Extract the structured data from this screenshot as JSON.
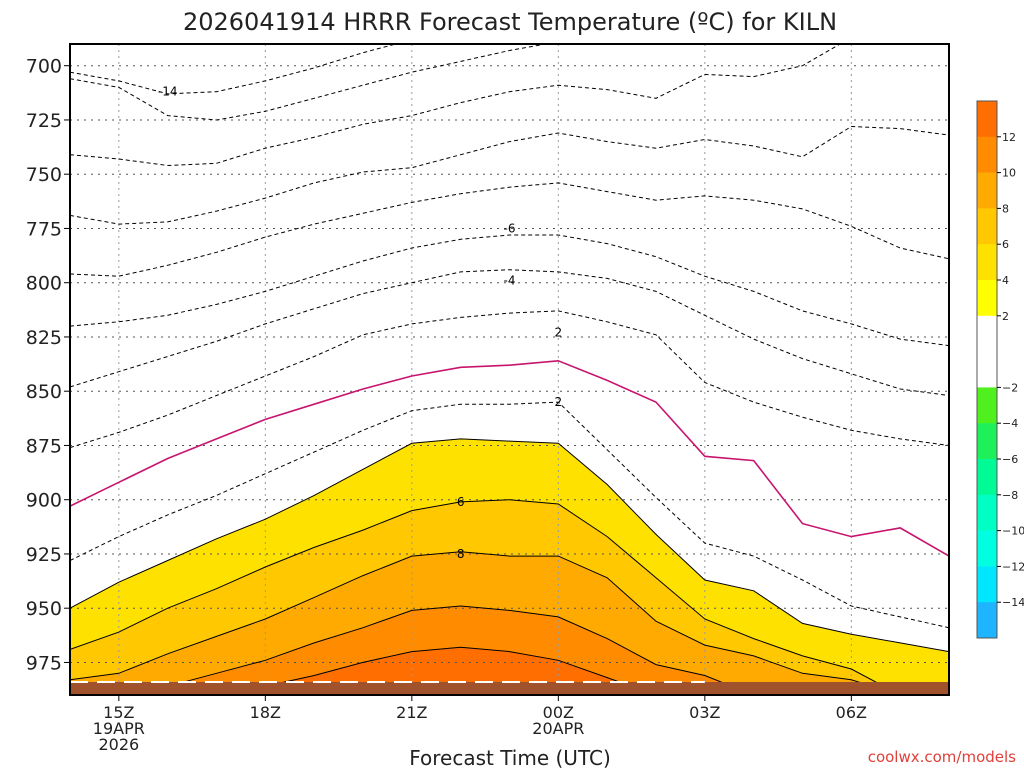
{
  "chart_data": {
    "type": "contour",
    "title": "2026041914 HRRR Forecast Temperature (ºC) for KILN",
    "xlabel": "Forecast Time (UTC)",
    "ylabel": "",
    "watermark": "coolwx.com/models",
    "x_hours": [
      14,
      15,
      16,
      17,
      18,
      19,
      20,
      21,
      22,
      23,
      24,
      25,
      26,
      27,
      28,
      29,
      30,
      31,
      32
    ],
    "xlim": [
      14,
      32
    ],
    "ylim": [
      690,
      990
    ],
    "y_ticks": [
      700,
      725,
      750,
      775,
      800,
      825,
      850,
      875,
      900,
      925,
      950,
      975
    ],
    "x_ticks": [
      {
        "hour": 15,
        "lines": [
          "15Z",
          "19APR",
          "2026"
        ]
      },
      {
        "hour": 18,
        "lines": [
          "18Z"
        ]
      },
      {
        "hour": 21,
        "lines": [
          "21Z"
        ]
      },
      {
        "hour": 24,
        "lines": [
          "00Z",
          "20APR"
        ]
      },
      {
        "hour": 27,
        "lines": [
          "03Z"
        ]
      },
      {
        "hour": 30,
        "lines": [
          "06Z"
        ]
      }
    ],
    "bands": [
      {
        "lower": -999,
        "upper": -14,
        "color": "#1eb4ff"
      },
      {
        "lower": -14,
        "upper": -12,
        "color": "#00e6ff"
      },
      {
        "lower": -12,
        "upper": -10,
        "color": "#00ffe1"
      },
      {
        "lower": -10,
        "upper": -8,
        "color": "#00ffc3"
      },
      {
        "lower": -8,
        "upper": -6,
        "color": "#00fa96"
      },
      {
        "lower": -6,
        "upper": -4,
        "color": "#1ef05a"
      },
      {
        "lower": -4,
        "upper": -2,
        "color": "#50f01e"
      },
      {
        "lower": -2,
        "upper": 2,
        "color": "#ffffff"
      },
      {
        "lower": 2,
        "upper": 4,
        "color": "#ffff00"
      },
      {
        "lower": 4,
        "upper": 6,
        "color": "#ffe100"
      },
      {
        "lower": 6,
        "upper": 8,
        "color": "#ffc800"
      },
      {
        "lower": 8,
        "upper": 10,
        "color": "#ffaa00"
      },
      {
        "lower": 10,
        "upper": 12,
        "color": "#ff8c00"
      },
      {
        "lower": 12,
        "upper": 999,
        "color": "#ff6e00"
      }
    ],
    "isotherms": [
      {
        "temp": -14,
        "label": "-14",
        "label_at": [
          16,
          712
        ],
        "upper_limit": 690,
        "pressure": [
          703,
          707,
          713,
          712,
          707,
          701,
          694,
          688,
          686,
          686,
          686,
          686,
          686,
          686,
          686,
          686,
          686,
          686,
          686
        ]
      },
      {
        "temp": -12,
        "label": "",
        "upper_limit": 690,
        "pressure": [
          706,
          710,
          723,
          725,
          721,
          715,
          709,
          703,
          698,
          693,
          689,
          688,
          687,
          686,
          686,
          686,
          686,
          686,
          686
        ]
      },
      {
        "temp": -10,
        "label": "",
        "upper_limit": 690,
        "pressure": [
          741,
          743,
          746,
          745,
          738,
          733,
          727,
          723,
          717,
          712,
          709,
          711,
          715,
          704,
          705,
          700,
          687,
          690,
          690
        ]
      },
      {
        "temp": -8,
        "label": "",
        "upper_limit": 690,
        "pressure": [
          769,
          773,
          772,
          767,
          761,
          754,
          749,
          747,
          741,
          735,
          731,
          735,
          738,
          734,
          737,
          742,
          728,
          729,
          732
        ]
      },
      {
        "temp": -6,
        "label": "-6",
        "label_at": [
          23,
          775
        ],
        "upper_limit": 690,
        "pressure": [
          796,
          797,
          792,
          786,
          779,
          773,
          768,
          763,
          759,
          756,
          754,
          758,
          762,
          760,
          762,
          766,
          774,
          784,
          789
        ]
      },
      {
        "temp": -4,
        "label": "-4",
        "label_at": [
          23,
          799
        ],
        "upper_limit": 690,
        "pressure": [
          820,
          818,
          815,
          810,
          804,
          797,
          790,
          784,
          780,
          778,
          778,
          782,
          788,
          797,
          804,
          813,
          819,
          826,
          829
        ]
      },
      {
        "temp": -2,
        "label": "",
        "upper_limit": 690,
        "pressure": [
          848,
          841,
          834,
          827,
          819,
          812,
          805,
          800,
          795,
          794,
          795,
          798,
          804,
          815,
          826,
          835,
          842,
          849,
          852
        ]
      },
      {
        "temp": 2,
        "label": "2",
        "label_at": [
          24,
          823
        ],
        "upper_limit": 690,
        "pressure": [
          876,
          869,
          861,
          852,
          843,
          834,
          824,
          819,
          816,
          814,
          813,
          818,
          824,
          846,
          855,
          862,
          868,
          872,
          875
        ]
      },
      {
        "temp": 0,
        "label": "",
        "line_color": "#c8146e",
        "line_dash": "solid",
        "upper_limit": 690,
        "pressure": [
          903,
          892,
          881,
          872,
          863,
          856,
          849,
          843,
          839,
          838,
          836,
          845,
          855,
          880,
          882,
          911,
          917,
          913,
          926
        ]
      },
      {
        "temp": 2,
        "label": "2",
        "label_at": [
          24,
          855
        ],
        "upper_limit": 690,
        "pressure": [
          928,
          917,
          907,
          898,
          888,
          878,
          868,
          859,
          856,
          856,
          855,
          877,
          899,
          920,
          926,
          937,
          949,
          954,
          959
        ]
      },
      {
        "temp": 4,
        "label": "",
        "upper_limit": 990,
        "pressure": [
          950,
          938,
          928,
          918,
          909,
          898,
          886,
          874,
          872,
          873,
          874,
          893,
          916,
          937,
          942,
          957,
          962,
          966,
          970
        ]
      },
      {
        "temp": 6,
        "label": "6",
        "label_at": [
          22,
          901
        ],
        "upper_limit": 990,
        "pressure": [
          969,
          961,
          950,
          941,
          931,
          922,
          914,
          905,
          901,
          900,
          902,
          917,
          936,
          955,
          964,
          972,
          978,
          990,
          990
        ]
      },
      {
        "temp": 8,
        "label": "8",
        "label_at": [
          22,
          925
        ],
        "upper_limit": 990,
        "pressure": [
          983,
          980,
          971,
          963,
          955,
          945,
          935,
          926,
          924,
          926,
          926,
          936,
          956,
          967,
          972,
          980,
          983,
          990,
          990
        ]
      },
      {
        "temp": 10,
        "label": "",
        "upper_limit": 990,
        "pressure": [
          990,
          990,
          986,
          980,
          974,
          966,
          959,
          951,
          949,
          951,
          954,
          964,
          976,
          981,
          990,
          990,
          990,
          990,
          990
        ]
      },
      {
        "temp": 12,
        "label": "",
        "upper_limit": 990,
        "pressure": [
          990,
          990,
          990,
          989,
          986,
          981,
          975,
          970,
          968,
          970,
          974,
          982,
          990,
          990,
          990,
          990,
          990,
          990,
          990
        ]
      }
    ],
    "ground": {
      "color": "#a0522d",
      "snow_color": "#ffffff",
      "top": 984
    },
    "colorbar": {
      "labels": [
        "12",
        "10",
        "8",
        "6",
        "4",
        "2",
        "−2",
        "−4",
        "−6",
        "−8",
        "−10",
        "−12",
        "−14"
      ]
    }
  }
}
